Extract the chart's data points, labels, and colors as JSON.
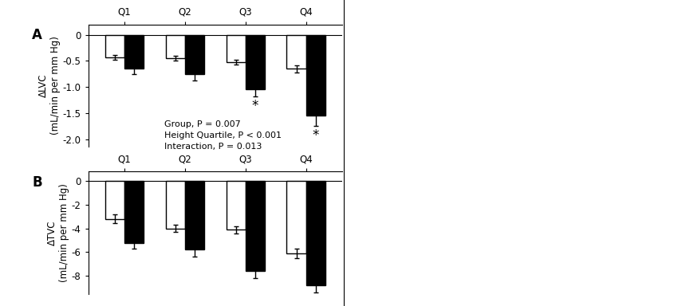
{
  "panel_A": {
    "title": "A",
    "ylabel": "ΔLVC\n(mL/min per mm Hg)",
    "ylim": [
      -2.15,
      0.2
    ],
    "yticks": [
      0,
      -0.5,
      -1.0,
      -1.5,
      -2.0
    ],
    "quartiles": [
      "Q1",
      "Q2",
      "Q3",
      "Q4"
    ],
    "white_bars": [
      -0.43,
      -0.45,
      -0.52,
      -0.65
    ],
    "black_bars": [
      -0.65,
      -0.75,
      -1.05,
      -1.55
    ],
    "white_errors": [
      0.05,
      0.05,
      0.05,
      0.07
    ],
    "black_errors": [
      0.1,
      0.12,
      0.13,
      0.2
    ],
    "star_black": [
      false,
      false,
      true,
      true
    ],
    "annotation": "Group, P = 0.007\nHeight Quartile, P < 0.001\nInteraction, P = 0.013"
  },
  "panel_B": {
    "title": "B",
    "ylabel": "ΔTVC\n(mL/min per mm Hg)",
    "ylim": [
      -9.5,
      0.8
    ],
    "yticks": [
      0,
      -2,
      -4,
      -6,
      -8
    ],
    "quartiles": [
      "Q1",
      "Q2",
      "Q3",
      "Q4"
    ],
    "white_bars": [
      -3.2,
      -4.0,
      -4.1,
      -6.1
    ],
    "black_bars": [
      -5.2,
      -5.8,
      -7.6,
      -8.8
    ],
    "white_errors": [
      0.35,
      0.3,
      0.3,
      0.4
    ],
    "black_errors": [
      0.5,
      0.55,
      0.55,
      0.6
    ]
  },
  "bar_width": 0.32,
  "white_color": "#ffffff",
  "black_color": "#000000",
  "edge_color": "#000000",
  "background_color": "#ffffff",
  "fontsize_label": 8.5,
  "fontsize_tick": 8.5,
  "fontsize_title": 12,
  "fontsize_annotation": 8,
  "fontsize_star": 12
}
